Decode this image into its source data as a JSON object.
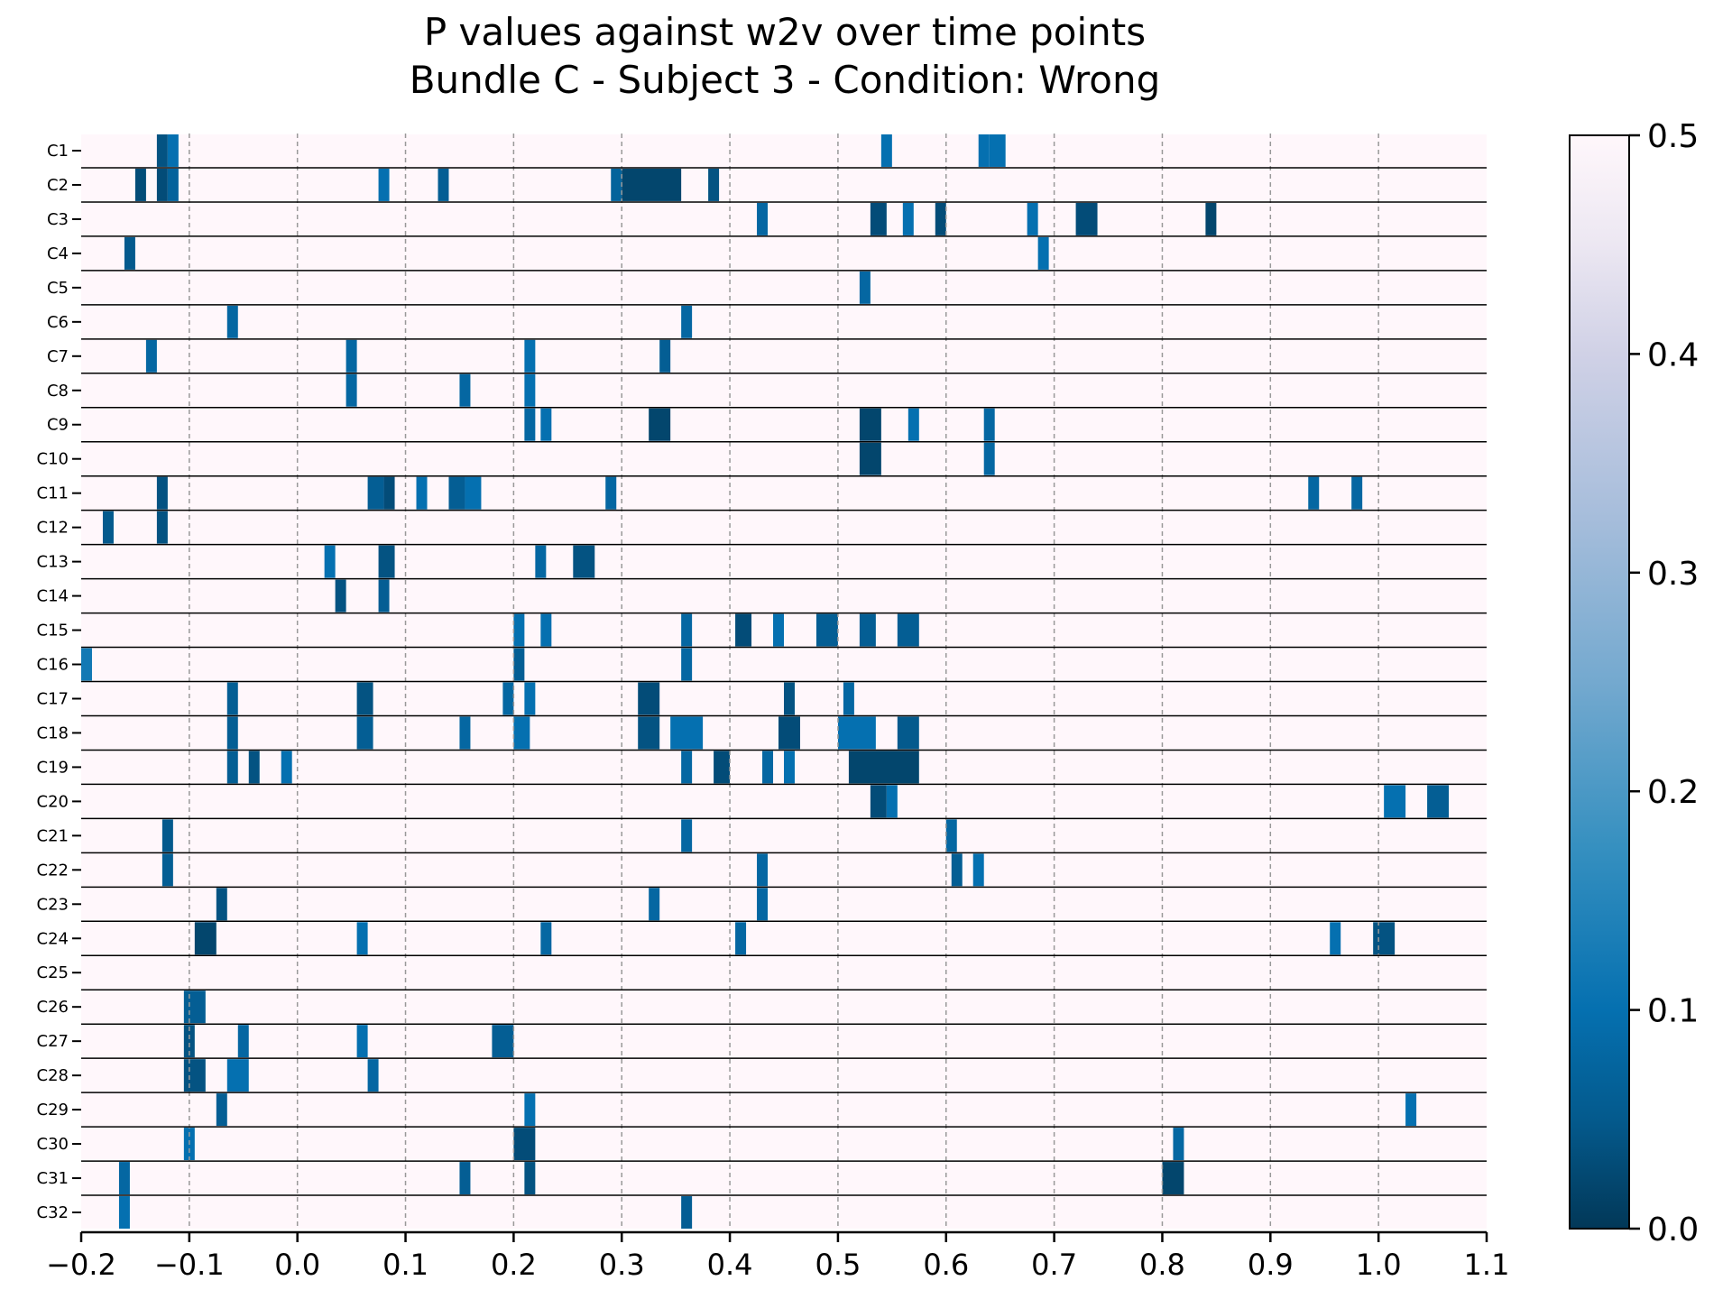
{
  "chart_data": {
    "type": "heatmap",
    "title": [
      "P values against w2v over time points",
      "Bundle C - Subject 3 - Condition: Wrong"
    ],
    "rows": [
      "C1",
      "C2",
      "C3",
      "C4",
      "C5",
      "C6",
      "C7",
      "C8",
      "C9",
      "C10",
      "C11",
      "C12",
      "C13",
      "C14",
      "C15",
      "C16",
      "C17",
      "C18",
      "C19",
      "C20",
      "C21",
      "C22",
      "C23",
      "C24",
      "C25",
      "C26",
      "C27",
      "C28",
      "C29",
      "C30",
      "C31",
      "C32"
    ],
    "xlim": [
      -0.2,
      1.1
    ],
    "xticks": [
      "−0.2",
      "−0.1",
      "0.0",
      "0.1",
      "0.2",
      "0.3",
      "0.4",
      "0.5",
      "0.6",
      "0.7",
      "0.8",
      "0.9",
      "1.0",
      "1.1"
    ],
    "xtick_values": [
      -0.2,
      -0.1,
      0.0,
      0.1,
      0.2,
      0.3,
      0.4,
      0.5,
      0.6,
      0.7,
      0.8,
      0.9,
      1.0,
      1.1
    ],
    "vlines": [
      -0.1,
      0.0,
      0.1,
      0.2,
      0.3,
      0.4,
      0.5,
      0.6,
      0.7,
      0.8,
      0.9,
      1.0
    ],
    "colorbar": {
      "min": 0.0,
      "max": 0.5,
      "ticks": [
        "0.0",
        "0.1",
        "0.2",
        "0.3",
        "0.4",
        "0.5"
      ],
      "colormap": "PuBu_r"
    },
    "background_value": 0.5,
    "cells": [
      [
        [
          -0.13,
          -0.12,
          0.04
        ],
        [
          -0.12,
          -0.11,
          0.1
        ],
        [
          0.54,
          0.55,
          0.1
        ],
        [
          0.63,
          0.64,
          0.1
        ],
        [
          0.64,
          0.655,
          0.1
        ]
      ],
      [
        [
          -0.15,
          -0.14,
          0.03
        ],
        [
          -0.13,
          -0.12,
          0.03
        ],
        [
          -0.12,
          -0.11,
          0.07
        ],
        [
          0.075,
          0.085,
          0.1
        ],
        [
          0.13,
          0.14,
          0.06
        ],
        [
          0.29,
          0.3,
          0.07
        ],
        [
          0.3,
          0.355,
          0.02
        ],
        [
          0.38,
          0.39,
          0.04
        ]
      ],
      [
        [
          0.425,
          0.435,
          0.08
        ],
        [
          0.53,
          0.545,
          0.03
        ],
        [
          0.56,
          0.57,
          0.1
        ],
        [
          0.59,
          0.6,
          0.03
        ],
        [
          0.675,
          0.685,
          0.1
        ],
        [
          0.72,
          0.74,
          0.03
        ],
        [
          0.84,
          0.85,
          0.02
        ]
      ],
      [
        [
          -0.16,
          -0.15,
          0.05
        ],
        [
          0.685,
          0.695,
          0.1
        ]
      ],
      [
        [
          0.52,
          0.53,
          0.08
        ]
      ],
      [
        [
          -0.065,
          -0.055,
          0.08
        ],
        [
          0.355,
          0.365,
          0.08
        ]
      ],
      [
        [
          -0.14,
          -0.13,
          0.08
        ],
        [
          0.045,
          0.055,
          0.08
        ],
        [
          0.21,
          0.22,
          0.1
        ],
        [
          0.335,
          0.345,
          0.06
        ]
      ],
      [
        [
          0.045,
          0.055,
          0.08
        ],
        [
          0.15,
          0.16,
          0.08
        ],
        [
          0.21,
          0.22,
          0.1
        ]
      ],
      [
        [
          0.21,
          0.22,
          0.08
        ],
        [
          0.225,
          0.235,
          0.1
        ],
        [
          0.325,
          0.345,
          0.02
        ],
        [
          0.52,
          0.54,
          0.02
        ],
        [
          0.565,
          0.575,
          0.1
        ],
        [
          0.635,
          0.645,
          0.08
        ]
      ],
      [
        [
          0.52,
          0.54,
          0.02
        ],
        [
          0.635,
          0.645,
          0.08
        ]
      ],
      [
        [
          -0.13,
          -0.12,
          0.04
        ],
        [
          0.065,
          0.08,
          0.06
        ],
        [
          0.08,
          0.09,
          0.03
        ],
        [
          0.11,
          0.12,
          0.1
        ],
        [
          0.14,
          0.155,
          0.06
        ],
        [
          0.155,
          0.17,
          0.1
        ],
        [
          0.285,
          0.295,
          0.08
        ],
        [
          0.935,
          0.945,
          0.08
        ],
        [
          0.975,
          0.985,
          0.08
        ]
      ],
      [
        [
          -0.18,
          -0.17,
          0.05
        ],
        [
          -0.13,
          -0.12,
          0.04
        ]
      ],
      [
        [
          0.025,
          0.035,
          0.1
        ],
        [
          0.075,
          0.09,
          0.04
        ],
        [
          0.22,
          0.23,
          0.08
        ],
        [
          0.255,
          0.275,
          0.04
        ]
      ],
      [
        [
          0.035,
          0.045,
          0.04
        ],
        [
          0.075,
          0.085,
          0.06
        ]
      ],
      [
        [
          0.2,
          0.21,
          0.1
        ],
        [
          0.225,
          0.235,
          0.1
        ],
        [
          0.355,
          0.365,
          0.08
        ],
        [
          0.405,
          0.42,
          0.03
        ],
        [
          0.44,
          0.45,
          0.1
        ],
        [
          0.48,
          0.5,
          0.06
        ],
        [
          0.52,
          0.535,
          0.06
        ],
        [
          0.555,
          0.575,
          0.06
        ]
      ],
      [
        [
          -0.2,
          -0.19,
          0.12
        ],
        [
          0.2,
          0.21,
          0.06
        ],
        [
          0.355,
          0.365,
          0.08
        ]
      ],
      [
        [
          -0.065,
          -0.055,
          0.06
        ],
        [
          0.055,
          0.07,
          0.04
        ],
        [
          0.19,
          0.2,
          0.08
        ],
        [
          0.21,
          0.22,
          0.1
        ],
        [
          0.315,
          0.335,
          0.03
        ],
        [
          0.45,
          0.46,
          0.04
        ],
        [
          0.505,
          0.515,
          0.08
        ]
      ],
      [
        [
          -0.065,
          -0.055,
          0.06
        ],
        [
          0.055,
          0.07,
          0.06
        ],
        [
          0.15,
          0.16,
          0.08
        ],
        [
          0.2,
          0.215,
          0.1
        ],
        [
          0.315,
          0.335,
          0.04
        ],
        [
          0.345,
          0.375,
          0.1
        ],
        [
          0.445,
          0.465,
          0.03
        ],
        [
          0.5,
          0.535,
          0.1
        ],
        [
          0.555,
          0.575,
          0.05
        ]
      ],
      [
        [
          -0.065,
          -0.055,
          0.06
        ],
        [
          -0.045,
          -0.035,
          0.04
        ],
        [
          -0.015,
          -0.005,
          0.1
        ],
        [
          0.355,
          0.365,
          0.08
        ],
        [
          0.385,
          0.4,
          0.03
        ],
        [
          0.43,
          0.44,
          0.08
        ],
        [
          0.45,
          0.46,
          0.1
        ],
        [
          0.51,
          0.575,
          0.02
        ]
      ],
      [
        [
          0.53,
          0.545,
          0.03
        ],
        [
          0.545,
          0.555,
          0.1
        ],
        [
          1.005,
          1.025,
          0.1
        ],
        [
          1.045,
          1.065,
          0.06
        ]
      ],
      [
        [
          -0.125,
          -0.115,
          0.05
        ],
        [
          0.355,
          0.365,
          0.08
        ],
        [
          0.6,
          0.61,
          0.08
        ]
      ],
      [
        [
          -0.125,
          -0.115,
          0.06
        ],
        [
          0.425,
          0.435,
          0.08
        ],
        [
          0.605,
          0.615,
          0.06
        ],
        [
          0.625,
          0.635,
          0.1
        ]
      ],
      [
        [
          -0.075,
          -0.065,
          0.04
        ],
        [
          0.325,
          0.335,
          0.08
        ],
        [
          0.425,
          0.435,
          0.08
        ]
      ],
      [
        [
          -0.095,
          -0.075,
          0.02
        ],
        [
          0.055,
          0.065,
          0.1
        ],
        [
          0.225,
          0.235,
          0.08
        ],
        [
          0.405,
          0.415,
          0.08
        ],
        [
          0.955,
          0.965,
          0.1
        ],
        [
          0.995,
          1.015,
          0.04
        ]
      ],
      [],
      [
        [
          -0.105,
          -0.085,
          0.06
        ]
      ],
      [
        [
          -0.105,
          -0.095,
          0.04
        ],
        [
          -0.055,
          -0.045,
          0.08
        ],
        [
          0.055,
          0.065,
          0.1
        ],
        [
          0.18,
          0.2,
          0.06
        ]
      ],
      [
        [
          -0.105,
          -0.085,
          0.04
        ],
        [
          -0.065,
          -0.045,
          0.1
        ],
        [
          0.065,
          0.075,
          0.08
        ]
      ],
      [
        [
          -0.075,
          -0.065,
          0.06
        ],
        [
          0.21,
          0.22,
          0.1
        ],
        [
          1.025,
          1.035,
          0.1
        ]
      ],
      [
        [
          -0.105,
          -0.095,
          0.1
        ],
        [
          0.2,
          0.22,
          0.03
        ],
        [
          0.81,
          0.82,
          0.08
        ]
      ],
      [
        [
          -0.165,
          -0.155,
          0.08
        ],
        [
          0.15,
          0.16,
          0.06
        ],
        [
          0.21,
          0.22,
          0.04
        ],
        [
          0.8,
          0.82,
          0.02
        ]
      ],
      [
        [
          -0.165,
          -0.155,
          0.1
        ],
        [
          0.355,
          0.365,
          0.06
        ]
      ]
    ]
  }
}
